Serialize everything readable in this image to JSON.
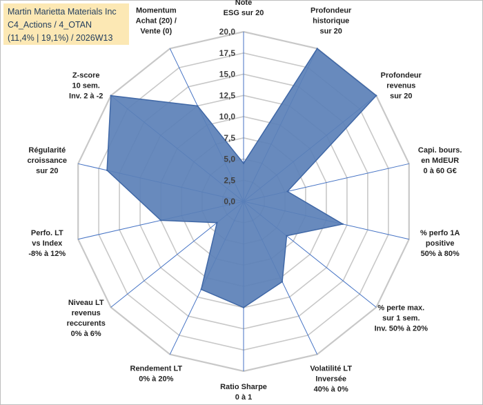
{
  "title_box": {
    "line1": "Martin Marietta Materials Inc",
    "line2": "C4_Actions / 4_OTAN",
    "line3": "(11,4% | 19,1%) / 2026W13"
  },
  "colors": {
    "fill": "#5b80b7",
    "stroke": "#3f67a6",
    "grid": "#c8c8c8",
    "spoke": "#4472c4",
    "title_bg": "#fce8b4"
  },
  "chart_data": {
    "type": "radar",
    "rmax": 20,
    "tick_values": [
      0,
      2.5,
      5,
      7.5,
      10,
      12.5,
      15,
      17.5,
      20
    ],
    "tick_labels": [
      "0,0",
      "2,5",
      "5,0",
      "7,5",
      "10,0",
      "12,5",
      "15,0",
      "17,5",
      "20,0"
    ],
    "axes": [
      {
        "label": [
          "Note",
          "ESG sur 20"
        ],
        "value": 4.5
      },
      {
        "label": [
          "Profondeur",
          "historique",
          "sur 20"
        ],
        "value": 20.0
      },
      {
        "label": [
          "Profondeur",
          "revenus",
          "sur 20"
        ],
        "value": 20.0
      },
      {
        "label": [
          "Capi. bours.",
          "en MdEUR",
          "0 à 60 G€"
        ],
        "value": 5.3
      },
      {
        "label": [
          "% perfo 1A",
          "positive",
          "50% à 80%"
        ],
        "value": 12.0
      },
      {
        "label": [
          "% perte max.",
          "sur 1 sem.",
          "Inv. 50% à 20%"
        ],
        "value": 6.5
      },
      {
        "label": [
          "Volatilité LT",
          "Inversée",
          "40% à 0%"
        ],
        "value": 10.5
      },
      {
        "label": [
          "Ratio Sharpe",
          "0 à 1"
        ],
        "value": 12.5
      },
      {
        "label": [
          "Rendement LT",
          "0% à 20%"
        ],
        "value": 11.5
      },
      {
        "label": [
          "Niveau LT",
          "revenus",
          "reccurents",
          "0% à 6%"
        ],
        "value": 4.0
      },
      {
        "label": [
          "Perfo. LT",
          "vs Index",
          "-8% à 12%"
        ],
        "value": 10.0
      },
      {
        "label": [
          "Régularité",
          "croissance",
          "sur 20"
        ],
        "value": 16.5
      },
      {
        "label": [
          "Z-score",
          "10 sem.",
          "Inv. 2 à -2"
        ],
        "value": 20.0
      },
      {
        "label": [
          "Momentum",
          "Achat (20) /",
          "Vente (0)"
        ],
        "value": 12.5
      }
    ]
  }
}
